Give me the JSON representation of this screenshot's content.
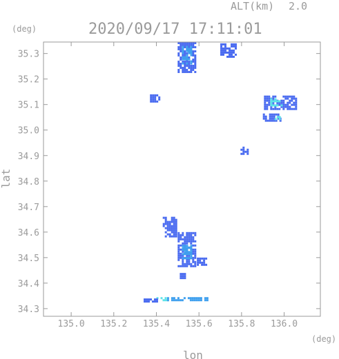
{
  "header": {
    "altitude_label": "ALT(km)",
    "altitude_value": "2.0",
    "timestamp": "2020/09/17 17:11:01"
  },
  "chart_data": {
    "type": "heatmap",
    "title": "2020/09/17 17:11:01",
    "xlabel": "lon",
    "ylabel": "lat",
    "x_unit": "(deg)",
    "y_unit": "(deg)",
    "xlim": [
      134.87,
      136.17
    ],
    "ylim": [
      34.27,
      35.345
    ],
    "x_ticks": [
      135.0,
      135.2,
      135.4,
      135.6,
      135.8,
      136.0
    ],
    "x_tick_labels": [
      "135.0",
      "135.2",
      "135.4",
      "135.6",
      "135.8",
      "136.0"
    ],
    "y_ticks": [
      34.3,
      34.4,
      34.5,
      34.6,
      34.7,
      34.8,
      34.9,
      35.0,
      35.1,
      35.2,
      35.3
    ],
    "y_tick_labels": [
      "34.3",
      "34.4",
      "34.5",
      "34.6",
      "34.7",
      "34.8",
      "34.9",
      "35.0",
      "35.1",
      "35.2",
      "35.3"
    ],
    "colors": {
      "weak": "#4a6bf0",
      "moderate": "#3fa0ee",
      "strong": "#5fe3e8",
      "axis": "#999999"
    },
    "echo_regions": [
      {
        "lon": [
          135.5,
          135.585
        ],
        "lat": [
          35.225,
          35.345
        ],
        "level": "weak"
      },
      {
        "lon": [
          135.52,
          135.56
        ],
        "lat": [
          35.26,
          35.33
        ],
        "level": "moderate"
      },
      {
        "lon": [
          135.7,
          135.775
        ],
        "lat": [
          35.285,
          35.34
        ],
        "level": "weak"
      },
      {
        "lon": [
          135.905,
          136.055
        ],
        "lat": [
          35.085,
          35.135
        ],
        "level": "weak"
      },
      {
        "lon": [
          135.935,
          135.99
        ],
        "lat": [
          35.095,
          35.125
        ],
        "level": "strong"
      },
      {
        "lon": [
          135.9,
          135.985
        ],
        "lat": [
          35.035,
          35.065
        ],
        "level": "weak"
      },
      {
        "lon": [
          135.955,
          135.975
        ],
        "lat": [
          35.04,
          35.055
        ],
        "level": "strong"
      },
      {
        "lon": [
          135.37,
          135.41
        ],
        "lat": [
          35.11,
          35.14
        ],
        "level": "weak"
      },
      {
        "lon": [
          135.795,
          135.825
        ],
        "lat": [
          34.905,
          34.935
        ],
        "level": "weak"
      },
      {
        "lon": [
          135.43,
          135.49
        ],
        "lat": [
          34.58,
          34.66
        ],
        "level": "weak"
      },
      {
        "lon": [
          135.5,
          135.585
        ],
        "lat": [
          34.47,
          34.6
        ],
        "level": "weak"
      },
      {
        "lon": [
          135.52,
          135.56
        ],
        "lat": [
          34.5,
          34.55
        ],
        "level": "moderate"
      },
      {
        "lon": [
          135.59,
          135.63
        ],
        "lat": [
          34.47,
          34.5
        ],
        "level": "weak"
      },
      {
        "lon": [
          135.4,
          135.45
        ],
        "lat": [
          34.33,
          34.345
        ],
        "level": "strong"
      },
      {
        "lon": [
          135.45,
          135.64
        ],
        "lat": [
          34.335,
          34.345
        ],
        "level": "moderate"
      },
      {
        "lon": [
          135.34,
          135.4
        ],
        "lat": [
          34.325,
          34.34
        ],
        "level": "weak"
      },
      {
        "lon": [
          135.51,
          135.535
        ],
        "lat": [
          34.42,
          34.44
        ],
        "level": "weak"
      }
    ]
  }
}
